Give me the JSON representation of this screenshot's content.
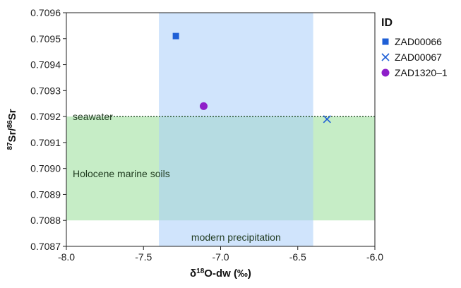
{
  "chart_data": {
    "type": "scatter",
    "xlabel": "δ18O-dw (‰)",
    "xlabel_parts": {
      "delta": "δ",
      "sup": "18",
      "rest": "O-dw (‰)"
    },
    "ylabel": "87Sr/86Sr",
    "ylabel_parts": {
      "sup1": "87",
      "part1": "Sr/",
      "sup2": "86",
      "part2": "Sr"
    },
    "xlim": [
      -8.0,
      -6.0
    ],
    "ylim": [
      0.7087,
      0.7096
    ],
    "x_ticks": [
      "-8.0",
      "-7.5",
      "-7.0",
      "-6.5",
      "-6.0"
    ],
    "y_ticks": [
      "0.7087",
      "0.7088",
      "0.7089",
      "0.7090",
      "0.7091",
      "0.7092",
      "0.7093",
      "0.7094",
      "0.7095",
      "0.7096"
    ],
    "grid": false,
    "legend": {
      "title": "ID",
      "placement": "right"
    },
    "series": [
      {
        "name": "ZAD00066",
        "marker": "square",
        "color": "#1f5fd6",
        "points": [
          {
            "x": -7.29,
            "y": 0.70951
          }
        ]
      },
      {
        "name": "ZAD00067",
        "marker": "x",
        "color": "#1f5fd6",
        "points": [
          {
            "x": -6.31,
            "y": 0.70919
          }
        ]
      },
      {
        "name": "ZAD1320–1",
        "marker": "circle",
        "color": "#8e1fc9",
        "points": [
          {
            "x": -7.11,
            "y": 0.70924
          }
        ]
      }
    ],
    "regions": [
      {
        "label": "modern precipitation",
        "x": [
          -7.4,
          -6.4
        ],
        "y": [
          0.7087,
          0.7096
        ],
        "color": "#a9cdfa"
      },
      {
        "label": "Holocene marine soils",
        "x": [
          -8.0,
          -6.0
        ],
        "y": [
          0.7088,
          0.7092
        ],
        "color": "#a8e3a8"
      }
    ],
    "reference_lines": [
      {
        "label": "seawater",
        "y": 0.7092,
        "style": "dotted",
        "color": "#1e4a1e"
      }
    ]
  }
}
